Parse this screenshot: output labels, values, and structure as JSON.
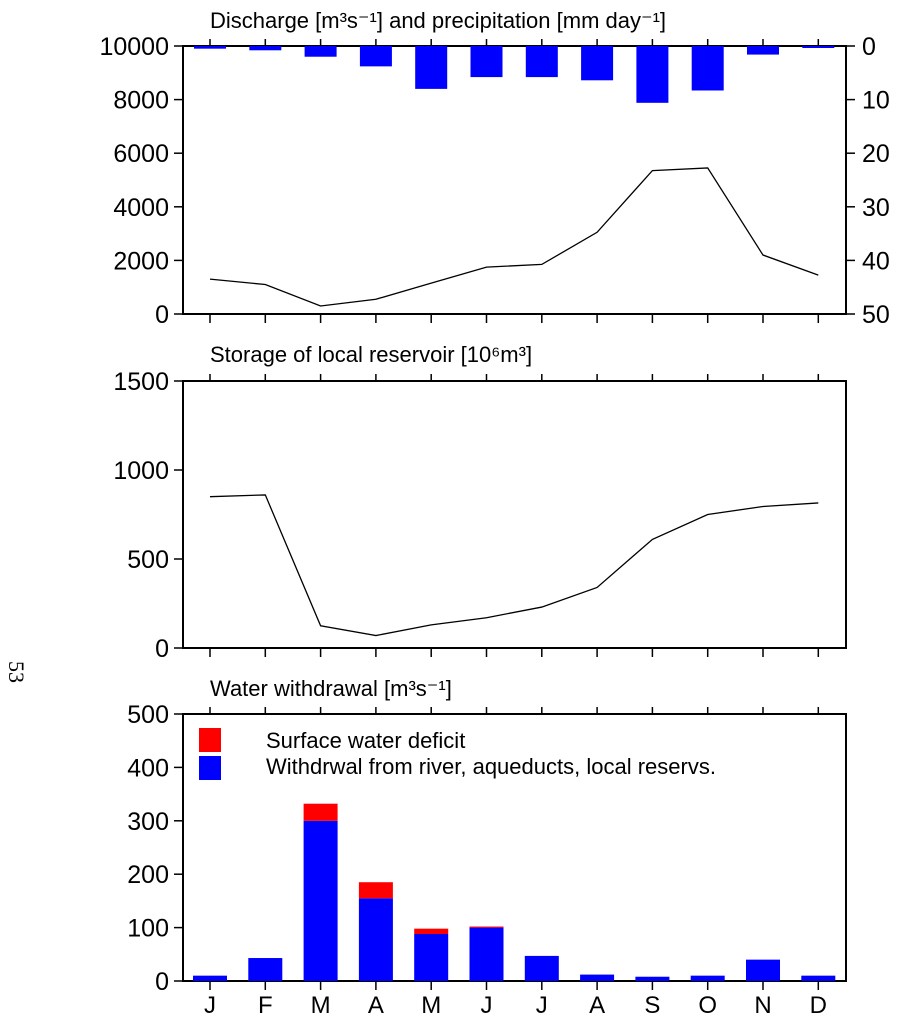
{
  "page_number": "53",
  "colors": {
    "precipitation": "#0000ff",
    "withdrawal": "#0000ff",
    "deficit": "#ff0000",
    "line": "#000000"
  },
  "chart_data": [
    {
      "type": "line+bar",
      "title": "Discharge [m³s⁻¹] and precipitation [mm day⁻¹]",
      "categories": [
        "J",
        "F",
        "M",
        "A",
        "M",
        "J",
        "J",
        "A",
        "S",
        "O",
        "N",
        "D"
      ],
      "ylim": [
        0,
        10000
      ],
      "yticks": [
        "0",
        "2000",
        "4000",
        "6000",
        "8000",
        "10000"
      ],
      "y2lim": [
        0,
        50
      ],
      "y2ticks": [
        "0",
        "10",
        "20",
        "30",
        "40",
        "50"
      ],
      "y2_inverted": true,
      "series": [
        {
          "kind": "line",
          "axis": "left",
          "values": [
            1300,
            1100,
            300,
            550,
            1150,
            1750,
            1850,
            3050,
            5350,
            5450,
            2200,
            1450
          ]
        },
        {
          "kind": "bar",
          "axis": "right",
          "values": [
            0.5,
            0.8,
            2.0,
            3.8,
            8.0,
            5.8,
            5.8,
            6.4,
            10.6,
            8.3,
            1.6,
            0
          ]
        }
      ]
    },
    {
      "type": "line",
      "title": "Storage of local reservoir [10⁶m³]",
      "categories": [
        "J",
        "F",
        "M",
        "A",
        "M",
        "J",
        "J",
        "A",
        "S",
        "O",
        "N",
        "D"
      ],
      "ylim": [
        0,
        1500
      ],
      "yticks": [
        "0",
        "500",
        "1000",
        "1500"
      ],
      "series": [
        {
          "values": [
            850,
            860,
            125,
            70,
            130,
            170,
            230,
            340,
            610,
            750,
            795,
            815
          ]
        }
      ]
    },
    {
      "type": "bar",
      "stacked": true,
      "title": "Water withdrawal [m³s⁻¹]",
      "categories": [
        "J",
        "F",
        "M",
        "A",
        "M",
        "J",
        "J",
        "A",
        "S",
        "O",
        "N",
        "D"
      ],
      "ylim": [
        0,
        500
      ],
      "yticks": [
        "0",
        "100",
        "200",
        "300",
        "400",
        "500"
      ],
      "legend_position": "top-left",
      "series": [
        {
          "name": "Withdrwal from river, aqueducts, local reservs.",
          "values": [
            10,
            43,
            300,
            155,
            88,
            100,
            47,
            12,
            8,
            10,
            40,
            10
          ]
        },
        {
          "name": "Surface water deficit",
          "values": [
            0,
            0,
            32,
            30,
            10,
            2,
            0,
            0,
            0,
            0,
            0,
            0
          ]
        }
      ]
    }
  ]
}
